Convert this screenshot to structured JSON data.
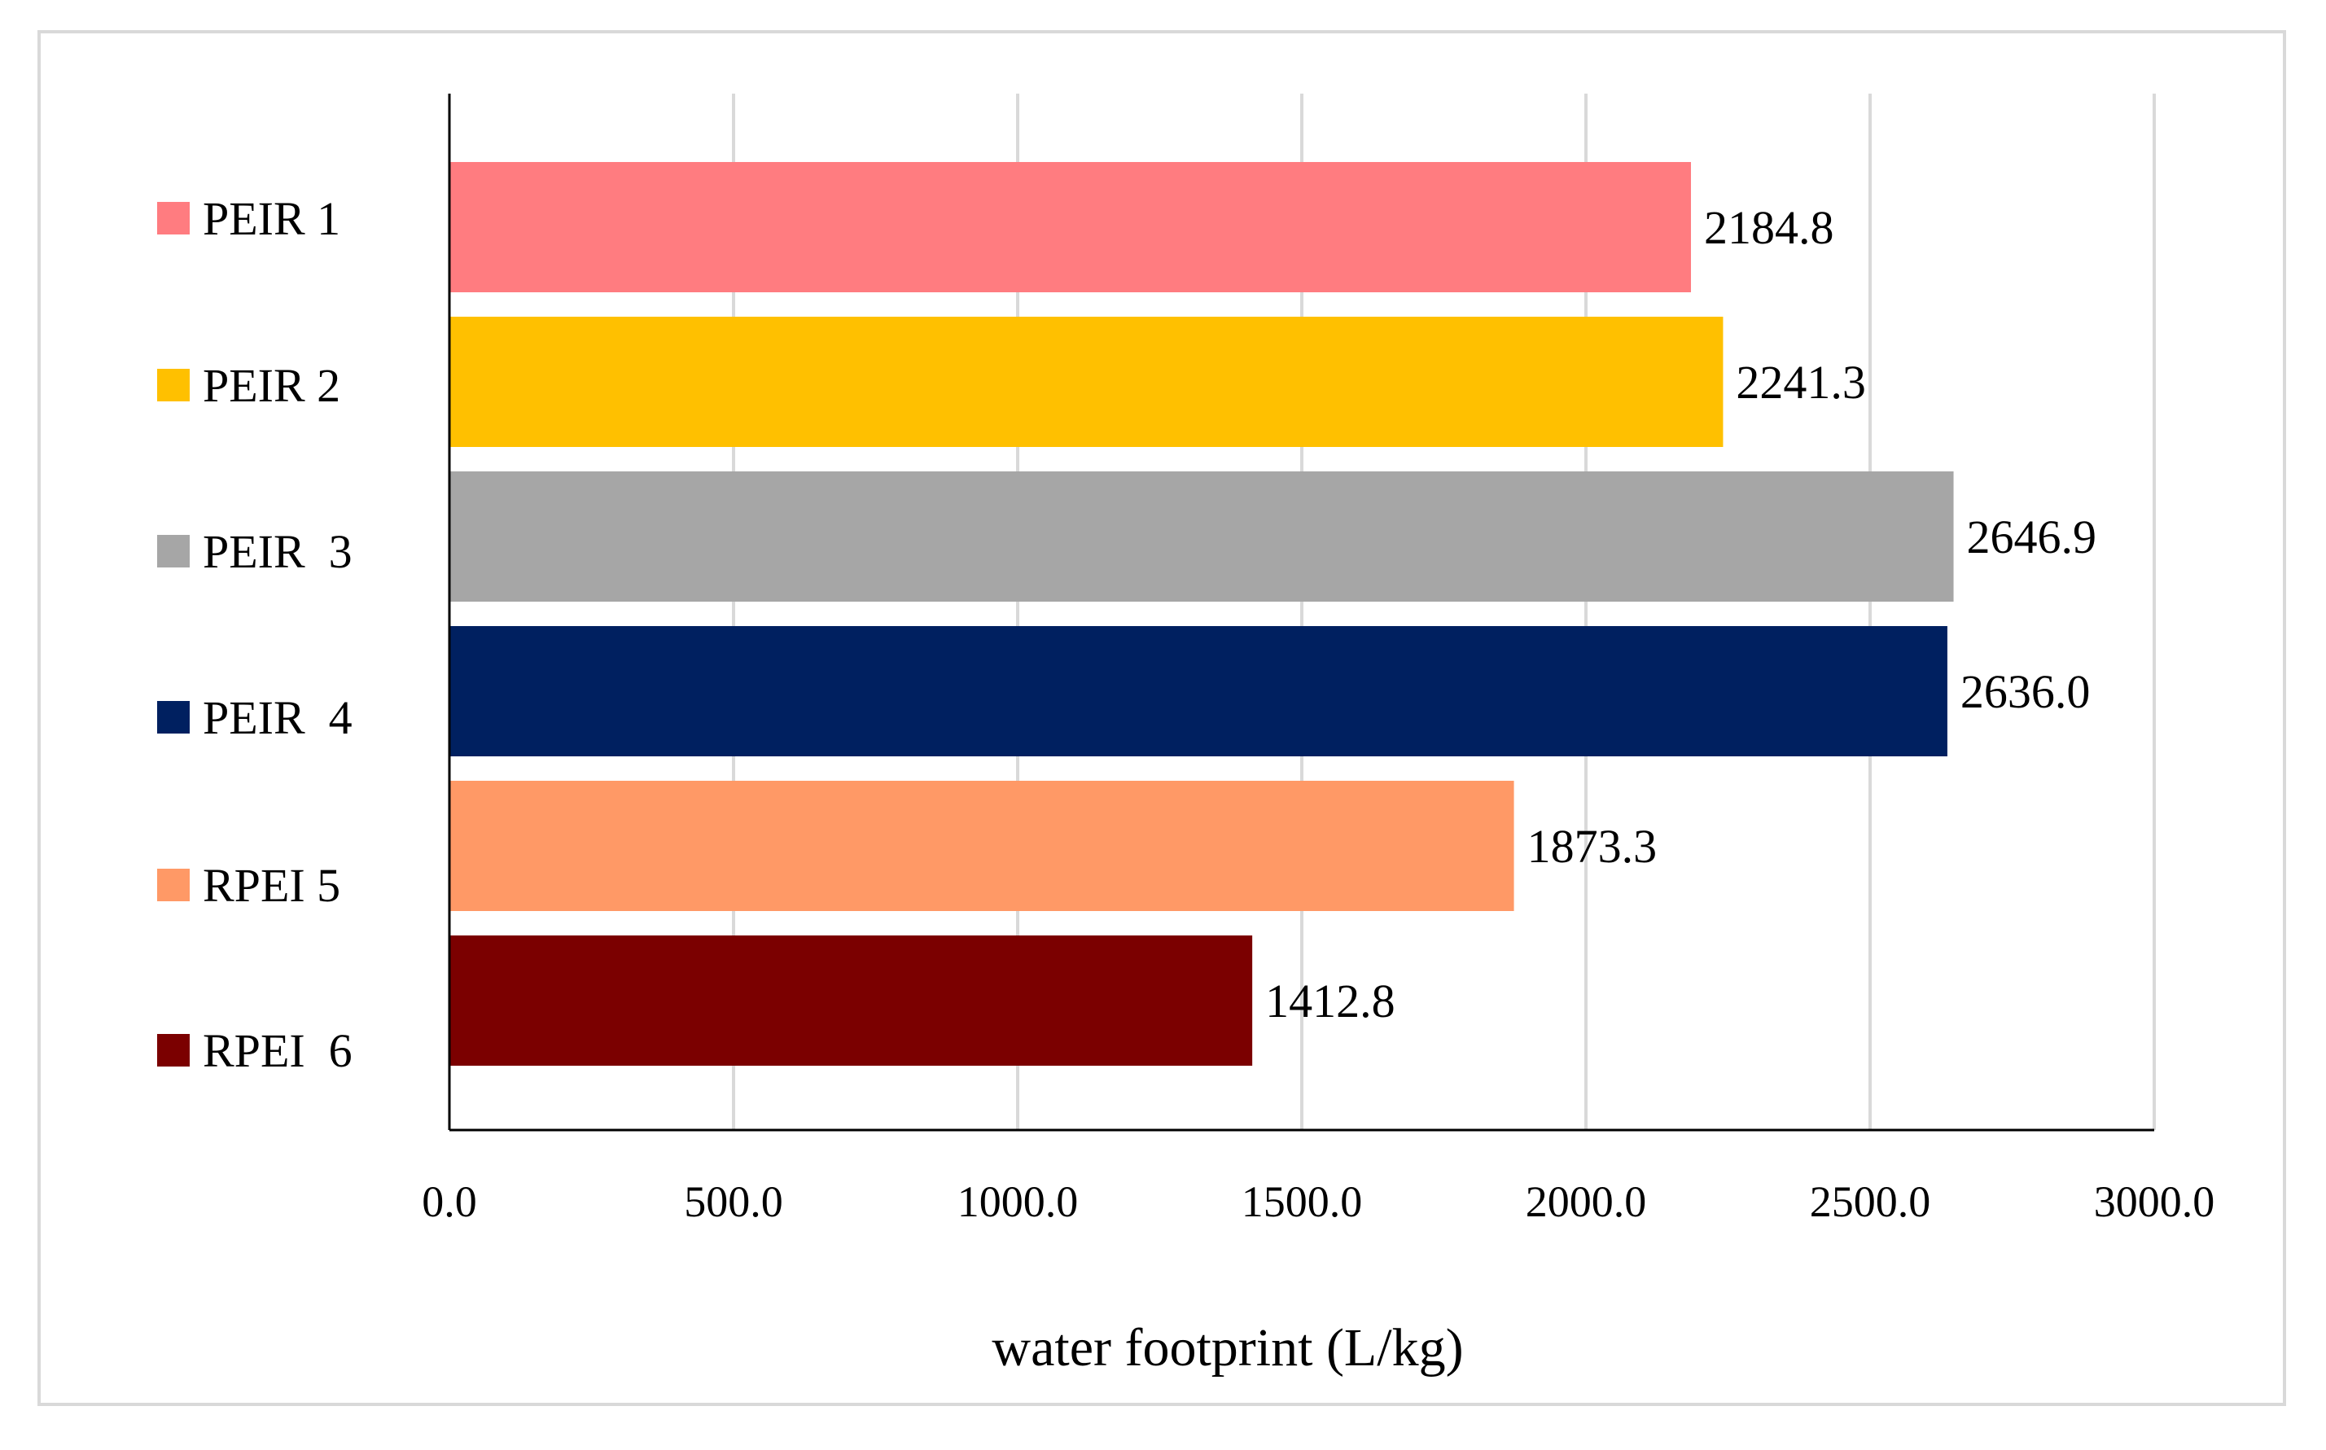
{
  "chart_data": {
    "type": "bar",
    "orientation": "horizontal",
    "title": "",
    "xlabel": "water footprint (L/kg)",
    "ylabel": "",
    "xlim": [
      0,
      3000
    ],
    "xticks": [
      0,
      500,
      1000,
      1500,
      2000,
      2500,
      3000
    ],
    "xtick_labels": [
      "0.0",
      "500.0",
      "1000.0",
      "1500.0",
      "2000.0",
      "2500.0",
      "3000.0"
    ],
    "grid": "vertical",
    "legend": "left",
    "categories": [
      "PEIR 1",
      "PEIR 2",
      "PEIR  3",
      "PEIR  4",
      "RPEI 5",
      "RPEI  6"
    ],
    "values": [
      2184.8,
      2241.3,
      2646.9,
      2636.0,
      1873.3,
      1412.8
    ],
    "value_labels": [
      "2184.8",
      "2241.3",
      "2646.9",
      "2636.0",
      "1873.3",
      "1412.8"
    ],
    "colors": [
      "#ff7c80",
      "#ffc000",
      "#a6a6a6",
      "#002060",
      "#ff9966",
      "#7b0000"
    ]
  }
}
